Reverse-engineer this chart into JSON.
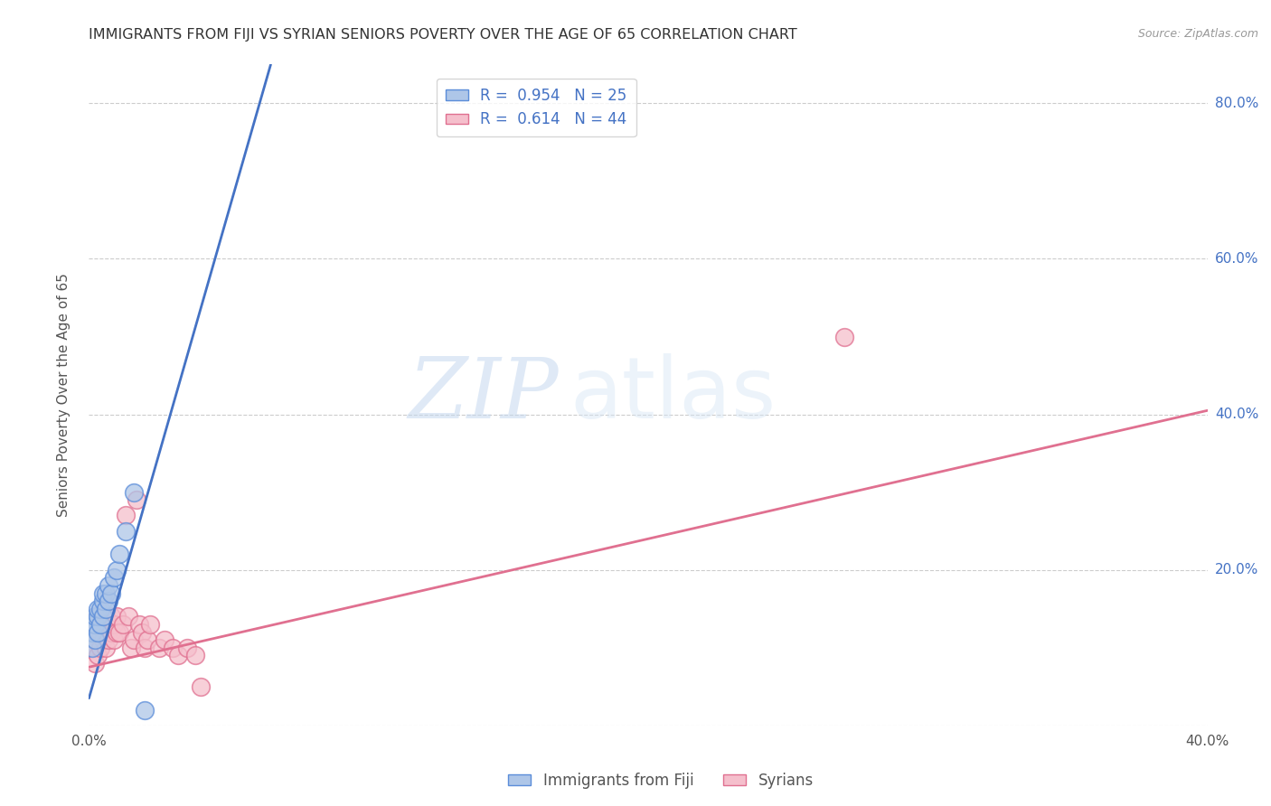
{
  "title": "IMMIGRANTS FROM FIJI VS SYRIAN SENIORS POVERTY OVER THE AGE OF 65 CORRELATION CHART",
  "source": "Source: ZipAtlas.com",
  "ylabel": "Seniors Poverty Over the Age of 65",
  "xlim": [
    0.0,
    0.4
  ],
  "ylim": [
    0.0,
    0.85
  ],
  "fiji_R": 0.954,
  "fiji_N": 25,
  "syrian_R": 0.614,
  "syrian_N": 44,
  "fiji_color": "#aec6e8",
  "fiji_edge_color": "#5b8dd9",
  "syrian_color": "#f5bfcc",
  "syrian_edge_color": "#e07090",
  "fiji_line_color": "#4472c4",
  "syrian_line_color": "#e07090",
  "legend_label_fiji": "Immigrants from Fiji",
  "legend_label_syrian": "Syrians",
  "watermark_zip": "ZIP",
  "watermark_atlas": "atlas",
  "background_color": "#ffffff",
  "grid_color": "#cccccc",
  "title_color": "#333333",
  "axis_label_color": "#555555",
  "right_tick_color": "#4472c4",
  "fiji_line_x": [
    0.0,
    0.065
  ],
  "fiji_line_y": [
    0.035,
    0.85
  ],
  "syrian_line_x": [
    0.0,
    0.4
  ],
  "syrian_line_y": [
    0.075,
    0.405
  ],
  "fiji_scatter_x": [
    0.001,
    0.001,
    0.001,
    0.002,
    0.002,
    0.002,
    0.003,
    0.003,
    0.003,
    0.004,
    0.004,
    0.005,
    0.005,
    0.005,
    0.006,
    0.006,
    0.007,
    0.007,
    0.008,
    0.009,
    0.01,
    0.011,
    0.013,
    0.016,
    0.02
  ],
  "fiji_scatter_y": [
    0.1,
    0.12,
    0.13,
    0.11,
    0.13,
    0.14,
    0.12,
    0.14,
    0.15,
    0.13,
    0.15,
    0.14,
    0.16,
    0.17,
    0.15,
    0.17,
    0.16,
    0.18,
    0.17,
    0.19,
    0.2,
    0.22,
    0.25,
    0.3,
    0.02
  ],
  "syrian_scatter_x": [
    0.001,
    0.001,
    0.002,
    0.002,
    0.002,
    0.003,
    0.003,
    0.003,
    0.004,
    0.004,
    0.004,
    0.005,
    0.005,
    0.006,
    0.006,
    0.006,
    0.007,
    0.007,
    0.008,
    0.008,
    0.009,
    0.009,
    0.01,
    0.01,
    0.011,
    0.012,
    0.013,
    0.014,
    0.015,
    0.016,
    0.017,
    0.018,
    0.019,
    0.02,
    0.021,
    0.022,
    0.025,
    0.027,
    0.03,
    0.032,
    0.035,
    0.038,
    0.04,
    0.27
  ],
  "syrian_scatter_y": [
    0.1,
    0.12,
    0.08,
    0.11,
    0.13,
    0.09,
    0.12,
    0.14,
    0.1,
    0.12,
    0.13,
    0.11,
    0.13,
    0.1,
    0.12,
    0.14,
    0.11,
    0.13,
    0.12,
    0.14,
    0.11,
    0.13,
    0.12,
    0.14,
    0.12,
    0.13,
    0.27,
    0.14,
    0.1,
    0.11,
    0.29,
    0.13,
    0.12,
    0.1,
    0.11,
    0.13,
    0.1,
    0.11,
    0.1,
    0.09,
    0.1,
    0.09,
    0.05,
    0.5
  ]
}
